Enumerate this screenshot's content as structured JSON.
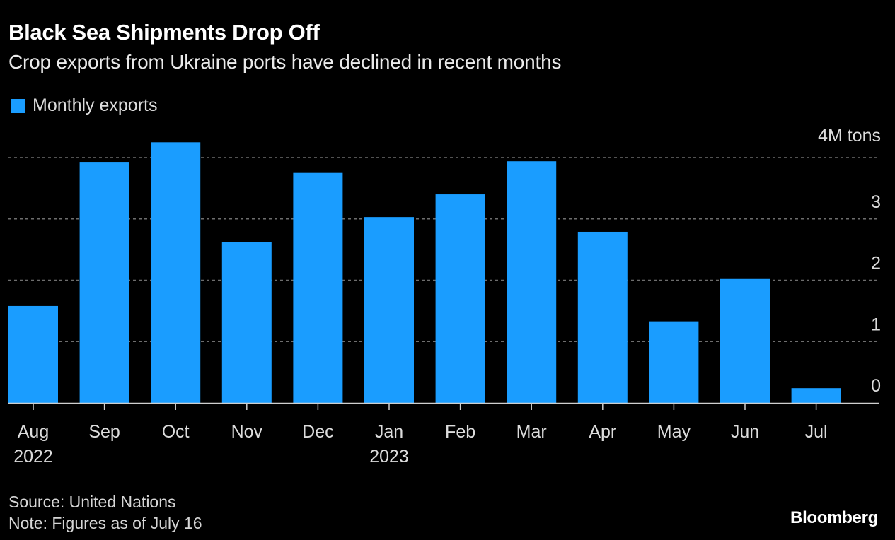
{
  "header": {
    "title": "Black Sea Shipments Drop Off",
    "subtitle": "Crop exports from Ukraine ports have declined in recent months"
  },
  "legend": [
    {
      "label": "Monthly exports",
      "color": "#1a9dff"
    }
  ],
  "footer": {
    "source": "Source: United Nations",
    "note": "Note: Figures as of July 16",
    "brand": "Bloomberg"
  },
  "chart_data": {
    "type": "bar",
    "title": "Black Sea Shipments Drop Off",
    "subtitle": "Crop exports from Ukraine ports have declined in recent months",
    "xlabel": "",
    "ylabel": "",
    "unit_label": "4M tons",
    "categories": [
      "Aug",
      "Sep",
      "Oct",
      "Nov",
      "Dec",
      "Jan",
      "Feb",
      "Mar",
      "Apr",
      "May",
      "Jun",
      "Jul"
    ],
    "category_year_labels": [
      "2022",
      "",
      "",
      "",
      "",
      "2023",
      "",
      "",
      "",
      "",
      "",
      ""
    ],
    "series": [
      {
        "name": "Monthly exports",
        "color": "#1a9dff",
        "values": [
          1.58,
          3.93,
          4.25,
          2.62,
          3.75,
          3.03,
          3.4,
          3.94,
          2.79,
          1.33,
          2.02,
          0.24
        ]
      }
    ],
    "ylim": [
      0,
      4.25
    ],
    "yticks": [
      0,
      1,
      2,
      3,
      4
    ],
    "ytick_labels": [
      "0",
      "1",
      "2",
      "3",
      "4M tons"
    ],
    "grid": true,
    "legend_position": "top-left",
    "colors": {
      "bar": "#1a9dff",
      "grid": "#6e6e6e",
      "axis": "#cfcfcf",
      "background": "#000000"
    }
  }
}
